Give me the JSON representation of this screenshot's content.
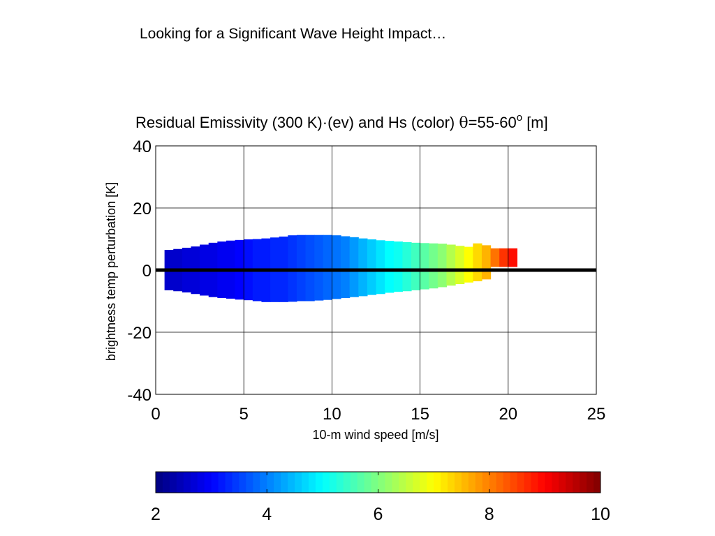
{
  "slide": {
    "title": "Looking for a Significant Wave Height Impact…"
  },
  "chart_data": {
    "type": "heatmap",
    "title": "Residual Emissivity (300 K)·(ev) and Hs (color) θ=55-60o [m]",
    "title_parts": {
      "main": "Residual Emissivity (300 K)",
      "dot": "·",
      "ev": "(ev) and Hs (color) ",
      "theta": "θ",
      "angle": "=55-60",
      "superscript": "o",
      "unit": " [m]"
    },
    "xlabel": "10-m wind speed [m/s]",
    "ylabel": "brightness temp perturbation [K]",
    "xlim": [
      0,
      25
    ],
    "ylim": [
      -40,
      40
    ],
    "xticks": [
      0,
      5,
      10,
      15,
      20,
      25
    ],
    "yticks": [
      40,
      20,
      0,
      -20,
      -40
    ],
    "grid": true,
    "zero_line": {
      "y": 0,
      "color": "#000000"
    },
    "colorbar": {
      "orientation": "horizontal",
      "range": [
        2,
        10
      ],
      "ticks": [
        2,
        4,
        6,
        8,
        10
      ],
      "colormap": "jet"
    },
    "bins": [
      {
        "x0": 0.5,
        "x1": 1.0,
        "ymin": -6.5,
        "ymax": 6.5,
        "hs": 2.6
      },
      {
        "x0": 1.0,
        "x1": 1.5,
        "ymin": -6.8,
        "ymax": 6.8,
        "hs": 2.6
      },
      {
        "x0": 1.5,
        "x1": 2.0,
        "ymin": -7.2,
        "ymax": 7.2,
        "hs": 2.7
      },
      {
        "x0": 2.0,
        "x1": 2.5,
        "ymin": -7.7,
        "ymax": 7.6,
        "hs": 2.7
      },
      {
        "x0": 2.5,
        "x1": 3.0,
        "ymin": -8.2,
        "ymax": 8.2,
        "hs": 2.8
      },
      {
        "x0": 3.0,
        "x1": 3.5,
        "ymin": -8.7,
        "ymax": 8.8,
        "hs": 2.8
      },
      {
        "x0": 3.5,
        "x1": 4.0,
        "ymin": -9.0,
        "ymax": 9.2,
        "hs": 2.9
      },
      {
        "x0": 4.0,
        "x1": 4.5,
        "ymin": -9.2,
        "ymax": 9.5,
        "hs": 2.9
      },
      {
        "x0": 4.5,
        "x1": 5.0,
        "ymin": -9.5,
        "ymax": 9.7,
        "hs": 3.0
      },
      {
        "x0": 5.0,
        "x1": 5.5,
        "ymin": -9.7,
        "ymax": 9.9,
        "hs": 3.1
      },
      {
        "x0": 5.5,
        "x1": 6.0,
        "ymin": -10.0,
        "ymax": 10.0,
        "hs": 3.2
      },
      {
        "x0": 6.0,
        "x1": 6.5,
        "ymin": -10.3,
        "ymax": 10.2,
        "hs": 3.2
      },
      {
        "x0": 6.5,
        "x1": 7.0,
        "ymin": -10.3,
        "ymax": 10.5,
        "hs": 3.3
      },
      {
        "x0": 7.0,
        "x1": 7.5,
        "ymin": -10.3,
        "ymax": 10.8,
        "hs": 3.3
      },
      {
        "x0": 7.5,
        "x1": 8.0,
        "ymin": -10.2,
        "ymax": 11.2,
        "hs": 3.4
      },
      {
        "x0": 8.0,
        "x1": 8.5,
        "ymin": -10.0,
        "ymax": 11.3,
        "hs": 3.5
      },
      {
        "x0": 8.5,
        "x1": 9.0,
        "ymin": -10.0,
        "ymax": 11.3,
        "hs": 3.6
      },
      {
        "x0": 9.0,
        "x1": 9.5,
        "ymin": -9.8,
        "ymax": 11.3,
        "hs": 3.7
      },
      {
        "x0": 9.5,
        "x1": 10.0,
        "ymin": -9.6,
        "ymax": 11.3,
        "hs": 3.8
      },
      {
        "x0": 10.0,
        "x1": 10.5,
        "ymin": -9.3,
        "ymax": 11.2,
        "hs": 3.9
      },
      {
        "x0": 10.5,
        "x1": 11.0,
        "ymin": -9.0,
        "ymax": 10.9,
        "hs": 4.0
      },
      {
        "x0": 11.0,
        "x1": 11.5,
        "ymin": -8.7,
        "ymax": 10.6,
        "hs": 4.2
      },
      {
        "x0": 11.5,
        "x1": 12.0,
        "ymin": -8.4,
        "ymax": 10.2,
        "hs": 4.4
      },
      {
        "x0": 12.0,
        "x1": 12.5,
        "ymin": -8.0,
        "ymax": 9.9,
        "hs": 4.6
      },
      {
        "x0": 12.5,
        "x1": 13.0,
        "ymin": -7.7,
        "ymax": 9.6,
        "hs": 4.8
      },
      {
        "x0": 13.0,
        "x1": 13.5,
        "ymin": -7.3,
        "ymax": 9.4,
        "hs": 5.0
      },
      {
        "x0": 13.5,
        "x1": 14.0,
        "ymin": -7.0,
        "ymax": 9.2,
        "hs": 5.1
      },
      {
        "x0": 14.0,
        "x1": 14.5,
        "ymin": -6.8,
        "ymax": 9.0,
        "hs": 5.3
      },
      {
        "x0": 14.5,
        "x1": 15.0,
        "ymin": -6.5,
        "ymax": 8.8,
        "hs": 5.5
      },
      {
        "x0": 15.0,
        "x1": 15.5,
        "ymin": -6.2,
        "ymax": 8.7,
        "hs": 5.7
      },
      {
        "x0": 15.5,
        "x1": 16.0,
        "ymin": -5.9,
        "ymax": 8.6,
        "hs": 5.9
      },
      {
        "x0": 16.0,
        "x1": 16.5,
        "ymin": -5.5,
        "ymax": 8.5,
        "hs": 6.1
      },
      {
        "x0": 16.5,
        "x1": 17.0,
        "ymin": -5.0,
        "ymax": 8.2,
        "hs": 6.4
      },
      {
        "x0": 17.0,
        "x1": 17.5,
        "ymin": -4.5,
        "ymax": 7.8,
        "hs": 6.7
      },
      {
        "x0": 17.5,
        "x1": 18.0,
        "ymin": -4.0,
        "ymax": 7.5,
        "hs": 7.0
      },
      {
        "x0": 18.0,
        "x1": 18.5,
        "ymin": -3.6,
        "ymax": 8.6,
        "hs": 7.3
      },
      {
        "x0": 18.5,
        "x1": 19.0,
        "ymin": -3.0,
        "ymax": 8.0,
        "hs": 7.6
      },
      {
        "x0": 19.0,
        "x1": 19.5,
        "ymin": 1.0,
        "ymax": 7.0,
        "hs": 8.1
      },
      {
        "x0": 19.5,
        "x1": 20.0,
        "ymin": 1.0,
        "ymax": 7.0,
        "hs": 8.6
      },
      {
        "x0": 20.0,
        "x1": 20.5,
        "ymin": 1.0,
        "ymax": 7.0,
        "hs": 8.9
      }
    ]
  }
}
